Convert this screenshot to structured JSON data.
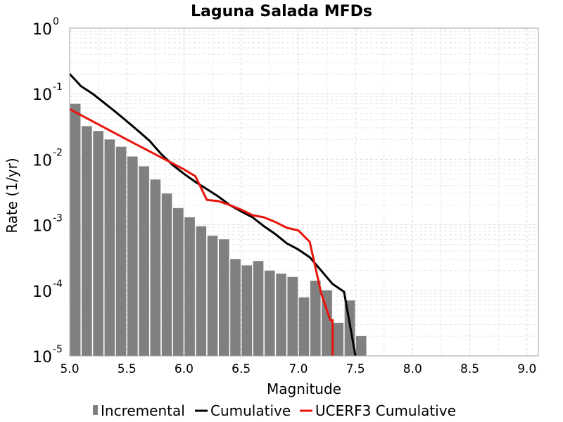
{
  "chart_data": {
    "type": "bar",
    "title": "Laguna Salada MFDs",
    "xlabel": "Magnitude",
    "ylabel": "Rate (1/yr)",
    "xlim": [
      5.0,
      9.1
    ],
    "ylim": [
      1e-05,
      1
    ],
    "y_scale": "log",
    "grid": true,
    "legend_position": "bottom",
    "x_ticks": [
      "5.0",
      "5.5",
      "6.0",
      "6.5",
      "7.0",
      "7.5",
      "8.0",
      "8.5",
      "9.0"
    ],
    "y_ticks": [
      {
        "base": "10",
        "exp": "0"
      },
      {
        "base": "10",
        "exp": "-1"
      },
      {
        "base": "10",
        "exp": "-2"
      },
      {
        "base": "10",
        "exp": "-3"
      },
      {
        "base": "10",
        "exp": "-4"
      },
      {
        "base": "10",
        "exp": "-5"
      }
    ],
    "series": [
      {
        "name": "Incremental",
        "kind": "bar",
        "color": "#808080",
        "x": [
          5.05,
          5.15,
          5.25,
          5.35,
          5.45,
          5.55,
          5.65,
          5.75,
          5.85,
          5.95,
          6.05,
          6.15,
          6.25,
          6.35,
          6.45,
          6.55,
          6.65,
          6.75,
          6.85,
          6.95,
          7.05,
          7.15,
          7.25,
          7.35,
          7.45,
          7.55
        ],
        "values": [
          0.07,
          0.032,
          0.027,
          0.02,
          0.0155,
          0.011,
          0.0078,
          0.0049,
          0.003,
          0.0018,
          0.0013,
          0.00095,
          0.00068,
          0.0006,
          0.0003,
          0.00024,
          0.00028,
          0.0002,
          0.00018,
          0.00016,
          7.8e-05,
          0.00014,
          0.0001,
          3.2e-05,
          7e-05,
          2e-05
        ]
      },
      {
        "name": "Cumulative",
        "kind": "line",
        "color": "#000000",
        "x": [
          5.0,
          5.1,
          5.2,
          5.3,
          5.4,
          5.5,
          5.6,
          5.7,
          5.8,
          5.9,
          6.0,
          6.1,
          6.2,
          6.3,
          6.4,
          6.5,
          6.6,
          6.7,
          6.8,
          6.9,
          7.0,
          7.1,
          7.2,
          7.3,
          7.4,
          7.5
        ],
        "values": [
          0.2,
          0.13,
          0.1,
          0.073,
          0.053,
          0.038,
          0.027,
          0.019,
          0.012,
          0.0082,
          0.006,
          0.0045,
          0.0035,
          0.0027,
          0.002,
          0.0016,
          0.0013,
          0.00095,
          0.00072,
          0.00052,
          0.00042,
          0.00032,
          0.0002,
          0.000125,
          9.5e-05,
          1e-05
        ]
      },
      {
        "name": "UCERF3 Cumulative",
        "kind": "line",
        "color": "#e8140c",
        "x": [
          5.0,
          5.5,
          6.0,
          6.1,
          6.2,
          6.3,
          6.4,
          6.5,
          6.6,
          6.7,
          6.8,
          6.9,
          7.0,
          7.1,
          7.2,
          7.28,
          7.3,
          7.3
        ],
        "values": [
          0.058,
          0.02,
          0.007,
          0.0055,
          0.0024,
          0.0023,
          0.002,
          0.0017,
          0.0014,
          0.0013,
          0.0011,
          0.0009,
          0.00082,
          0.00055,
          9e-05,
          3.5e-05,
          3.5e-05,
          1e-05
        ]
      }
    ]
  }
}
